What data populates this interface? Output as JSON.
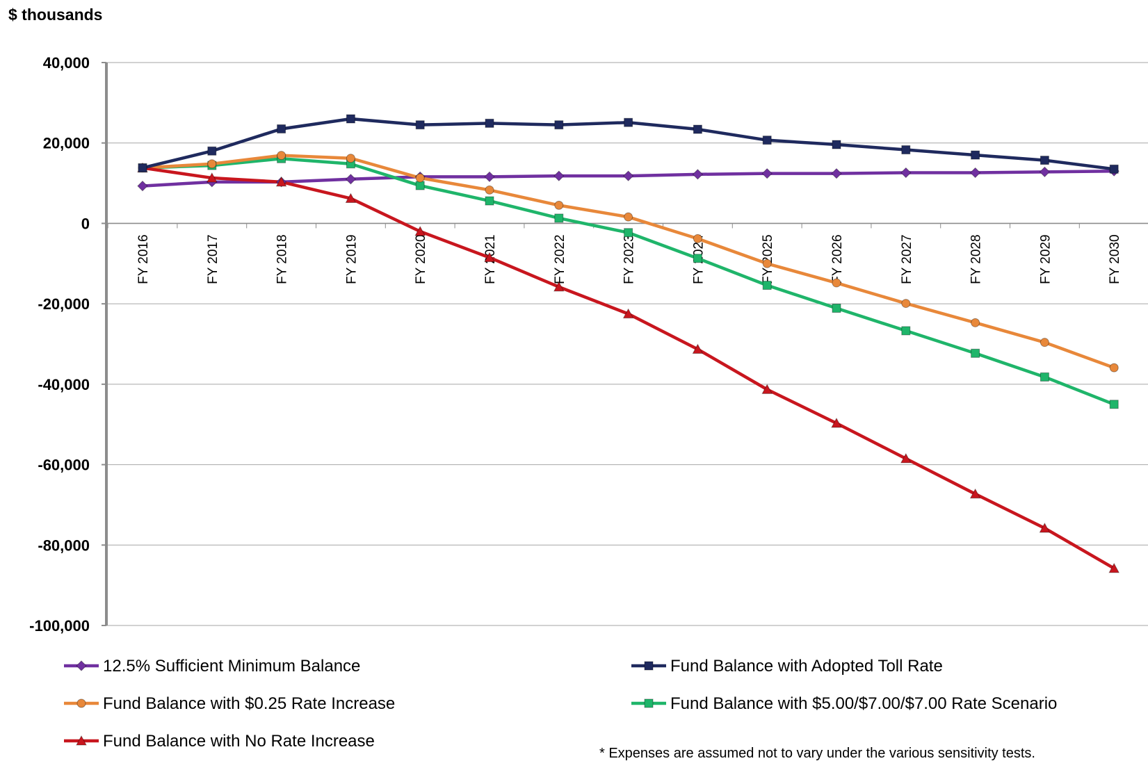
{
  "chart_data": {
    "type": "line",
    "ylabel": "$ thousands",
    "ylim": [
      -100000,
      40000
    ],
    "yticks": [
      40000,
      20000,
      0,
      -20000,
      -40000,
      -60000,
      -80000,
      -100000
    ],
    "ytick_labels": [
      "40,000",
      "20,000",
      "0",
      "-20,000",
      "-40,000",
      "-60,000",
      "-80,000",
      "-100,000"
    ],
    "grid": "horizontal",
    "categories": [
      "FY 2016",
      "FY 2017",
      "FY 2018",
      "FY 2019",
      "FY 2020",
      "FY 2021",
      "FY 2022",
      "FY 2023",
      "FY 2024",
      "FY 2025",
      "FY 2026",
      "FY 2027",
      "FY 2028",
      "FY 2029",
      "FY 2030"
    ],
    "legend_position": "bottom",
    "series": [
      {
        "name": "12.5% Sufficient Minimum Balance",
        "color": "#7030A0",
        "marker": "diamond",
        "values": [
          9300,
          10300,
          10300,
          11000,
          11600,
          11600,
          11800,
          11800,
          12200,
          12400,
          12400,
          12600,
          12600,
          12800,
          13000
        ]
      },
      {
        "name": "Fund Balance with Adopted Toll Rate",
        "color": "#1F2A5E",
        "marker": "square",
        "values": [
          13800,
          18000,
          23500,
          26000,
          24500,
          24900,
          24500,
          25100,
          23400,
          20700,
          19600,
          18300,
          17000,
          15700,
          13500
        ]
      },
      {
        "name": "Fund Balance with $0.25 Rate Increase",
        "color": "#E8883A",
        "marker": "circle",
        "values": [
          13800,
          14800,
          16900,
          16200,
          11300,
          8300,
          4500,
          1600,
          -3800,
          -10000,
          -14800,
          -19900,
          -24700,
          -29600,
          -35900
        ]
      },
      {
        "name": "Fund Balance with $5.00/$7.00/$7.00 Rate Scenario",
        "color": "#1FB56A",
        "marker": "square",
        "values": [
          13800,
          14400,
          16100,
          14800,
          9400,
          5600,
          1300,
          -2300,
          -8700,
          -15400,
          -21100,
          -26700,
          -32300,
          -38200,
          -45000
        ]
      },
      {
        "name": "Fund Balance with No Rate Increase",
        "color": "#C8161E",
        "marker": "triangle",
        "values": [
          13800,
          11300,
          10300,
          6200,
          -2000,
          -8500,
          -15800,
          -22500,
          -31300,
          -41300,
          -49700,
          -58500,
          -67300,
          -75800,
          -85800
        ]
      }
    ],
    "annotation": "* Expenses are assumed not to vary under the various sensitivity tests."
  }
}
